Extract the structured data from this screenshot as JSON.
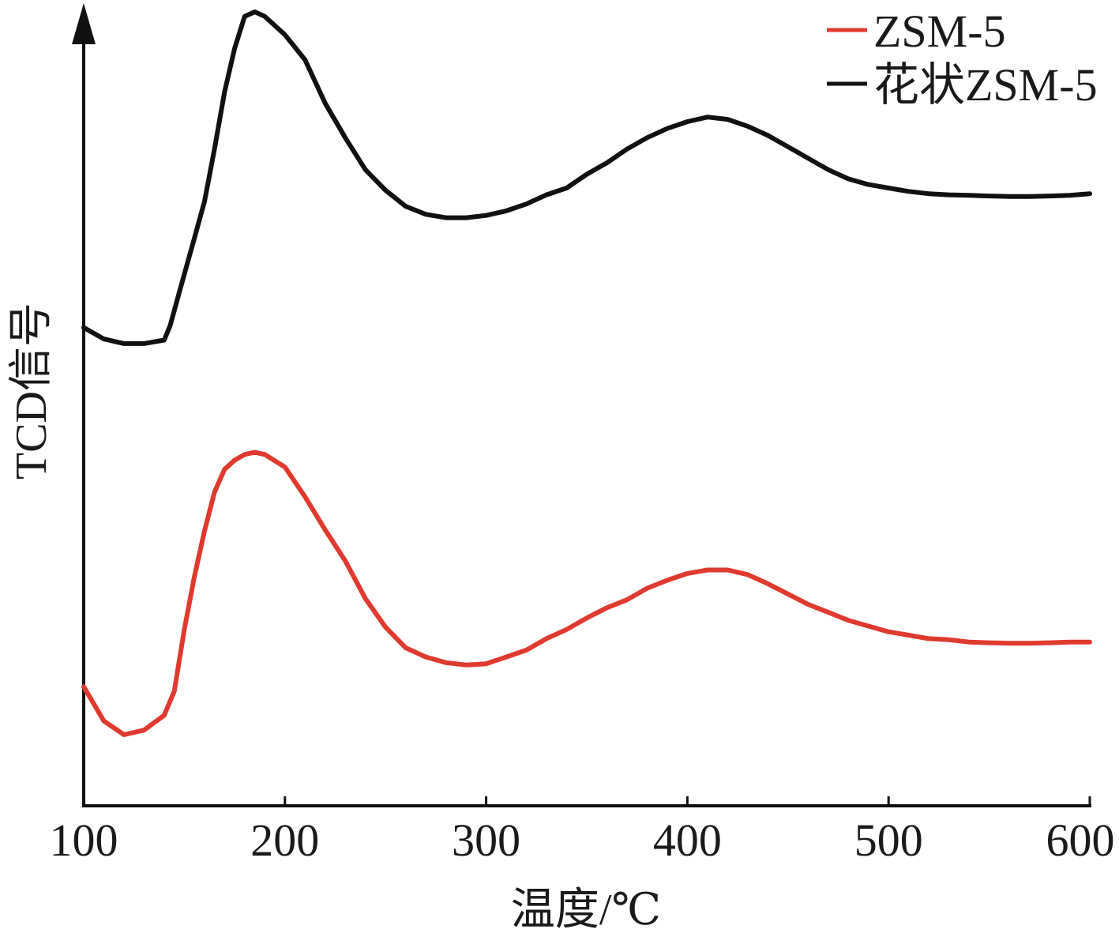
{
  "chart_data": {
    "type": "line",
    "title": "",
    "xlabel": "温度/℃",
    "ylabel": "TCD信号",
    "xlim": [
      100,
      600
    ],
    "x_ticks": [
      "100",
      "200",
      "300",
      "400",
      "500",
      "600"
    ],
    "y_ticks": [],
    "grid": false,
    "legend_position": "top-right",
    "series": [
      {
        "name": "ZSM-5",
        "color": "#e03a2f",
        "points": [
          [
            100,
            0.3
          ],
          [
            110,
            0.15
          ],
          [
            120,
            0.09
          ],
          [
            130,
            0.11
          ],
          [
            140,
            0.175
          ],
          [
            145,
            0.28
          ],
          [
            150,
            0.55
          ],
          [
            155,
            0.78
          ],
          [
            160,
            0.98
          ],
          [
            165,
            1.15
          ],
          [
            170,
            1.25
          ],
          [
            175,
            1.29
          ],
          [
            180,
            1.315
          ],
          [
            185,
            1.325
          ],
          [
            190,
            1.315
          ],
          [
            200,
            1.26
          ],
          [
            210,
            1.13
          ],
          [
            220,
            0.985
          ],
          [
            230,
            0.85
          ],
          [
            240,
            0.685
          ],
          [
            250,
            0.56
          ],
          [
            260,
            0.47
          ],
          [
            270,
            0.43
          ],
          [
            280,
            0.405
          ],
          [
            290,
            0.395
          ],
          [
            300,
            0.4
          ],
          [
            310,
            0.43
          ],
          [
            320,
            0.46
          ],
          [
            330,
            0.51
          ],
          [
            340,
            0.55
          ],
          [
            350,
            0.6
          ],
          [
            360,
            0.645
          ],
          [
            370,
            0.68
          ],
          [
            380,
            0.73
          ],
          [
            390,
            0.765
          ],
          [
            400,
            0.795
          ],
          [
            410,
            0.81
          ],
          [
            420,
            0.81
          ],
          [
            430,
            0.79
          ],
          [
            440,
            0.75
          ],
          [
            450,
            0.705
          ],
          [
            460,
            0.66
          ],
          [
            470,
            0.625
          ],
          [
            480,
            0.59
          ],
          [
            490,
            0.565
          ],
          [
            500,
            0.54
          ],
          [
            510,
            0.525
          ],
          [
            520,
            0.51
          ],
          [
            530,
            0.505
          ],
          [
            540,
            0.495
          ],
          [
            550,
            0.492
          ],
          [
            560,
            0.49
          ],
          [
            570,
            0.49
          ],
          [
            580,
            0.492
          ],
          [
            590,
            0.495
          ],
          [
            600,
            0.495
          ]
        ]
      },
      {
        "name": "花状ZSM-5",
        "color": "#111111",
        "points": [
          [
            100,
            1.87
          ],
          [
            110,
            1.82
          ],
          [
            120,
            1.8
          ],
          [
            130,
            1.8
          ],
          [
            140,
            1.815
          ],
          [
            143,
            1.88
          ],
          [
            148,
            2.04
          ],
          [
            155,
            2.26
          ],
          [
            160,
            2.42
          ],
          [
            165,
            2.65
          ],
          [
            170,
            2.9
          ],
          [
            175,
            3.09
          ],
          [
            180,
            3.23
          ],
          [
            185,
            3.25
          ],
          [
            190,
            3.23
          ],
          [
            200,
            3.15
          ],
          [
            210,
            3.04
          ],
          [
            220,
            2.85
          ],
          [
            230,
            2.7
          ],
          [
            240,
            2.56
          ],
          [
            250,
            2.47
          ],
          [
            260,
            2.4
          ],
          [
            270,
            2.365
          ],
          [
            280,
            2.35
          ],
          [
            290,
            2.35
          ],
          [
            300,
            2.36
          ],
          [
            310,
            2.38
          ],
          [
            320,
            2.41
          ],
          [
            330,
            2.45
          ],
          [
            340,
            2.48
          ],
          [
            350,
            2.54
          ],
          [
            360,
            2.59
          ],
          [
            370,
            2.65
          ],
          [
            380,
            2.7
          ],
          [
            390,
            2.74
          ],
          [
            400,
            2.77
          ],
          [
            410,
            2.79
          ],
          [
            420,
            2.78
          ],
          [
            430,
            2.75
          ],
          [
            440,
            2.71
          ],
          [
            450,
            2.66
          ],
          [
            460,
            2.61
          ],
          [
            470,
            2.56
          ],
          [
            480,
            2.52
          ],
          [
            490,
            2.495
          ],
          [
            500,
            2.48
          ],
          [
            510,
            2.465
          ],
          [
            520,
            2.455
          ],
          [
            530,
            2.45
          ],
          [
            540,
            2.448
          ],
          [
            550,
            2.445
          ],
          [
            560,
            2.443
          ],
          [
            570,
            2.443
          ],
          [
            580,
            2.445
          ],
          [
            590,
            2.448
          ],
          [
            600,
            2.455
          ]
        ]
      }
    ]
  }
}
